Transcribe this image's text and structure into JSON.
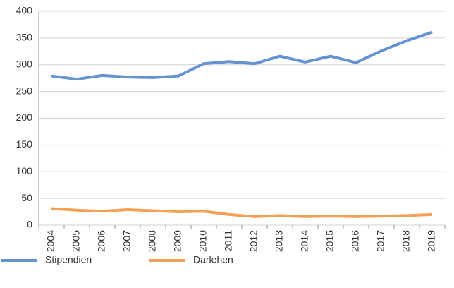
{
  "chart_data": {
    "type": "line",
    "categories": [
      "2004",
      "2005",
      "2006",
      "2007",
      "2008",
      "2009",
      "2010",
      "2011",
      "2012",
      "2013",
      "2014",
      "2015",
      "2016",
      "2017",
      "2018",
      "2019"
    ],
    "series": [
      {
        "name": "Stipendien",
        "color": "#6593d2",
        "values": [
          279,
          273,
          280,
          277,
          276,
          279,
          302,
          306,
          302,
          316,
          305,
          316,
          304,
          326,
          345,
          361
        ]
      },
      {
        "name": "Darlehen",
        "color": "#f5a055",
        "values": [
          31,
          28,
          26,
          29,
          27,
          25,
          26,
          20,
          16,
          18,
          16,
          17,
          16,
          17,
          18,
          20
        ]
      }
    ],
    "ylim": [
      0,
      400
    ],
    "yticks": [
      0,
      50,
      100,
      150,
      200,
      250,
      300,
      350,
      400
    ],
    "grid": true,
    "legend": "bottom-left"
  }
}
